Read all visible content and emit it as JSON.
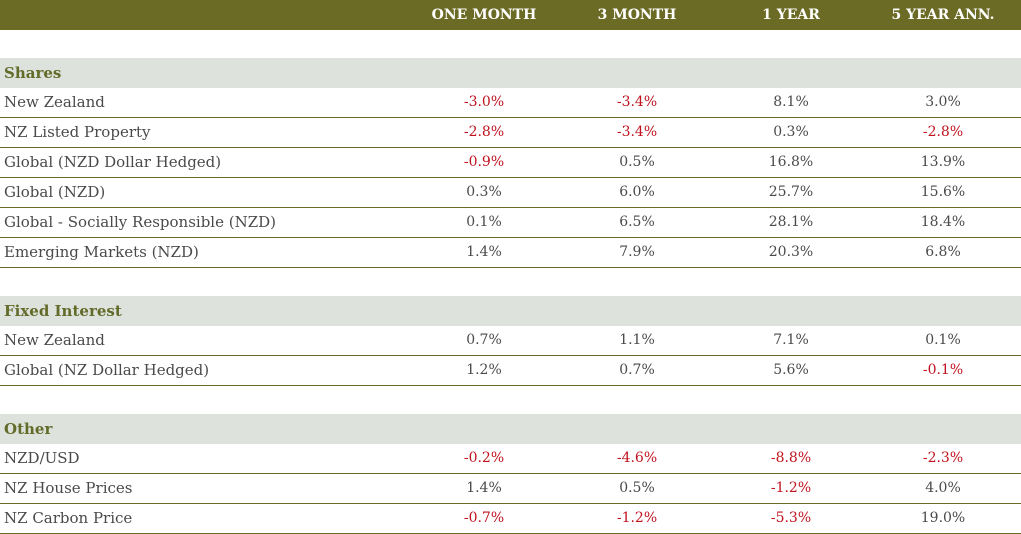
{
  "columns": [
    "ONE MONTH",
    "3 MONTH",
    "1 YEAR",
    "5 YEAR ANN."
  ],
  "colors": {
    "header_bg": "#6b6b26",
    "section_bg": "#dde3dc",
    "section_text": "#636b2a",
    "negative": "#c0121f",
    "text": "#4a4a4a"
  },
  "sections": [
    {
      "title": "Shares",
      "rows": [
        {
          "label": "New Zealand",
          "values": [
            "-3.0%",
            "-3.4%",
            "8.1%",
            "3.0%"
          ]
        },
        {
          "label": "NZ Listed Property",
          "values": [
            "-2.8%",
            "-3.4%",
            "0.3%",
            "-2.8%"
          ]
        },
        {
          "label": "Global (NZD Dollar Hedged)",
          "values": [
            "-0.9%",
            "0.5%",
            "16.8%",
            "13.9%"
          ]
        },
        {
          "label": "Global (NZD)",
          "values": [
            "0.3%",
            "6.0%",
            "25.7%",
            "15.6%"
          ]
        },
        {
          "label": "Global - Socially Responsible (NZD)",
          "values": [
            "0.1%",
            "6.5%",
            "28.1%",
            "18.4%"
          ]
        },
        {
          "label": "Emerging Markets (NZD)",
          "values": [
            "1.4%",
            "7.9%",
            "20.3%",
            "6.8%"
          ]
        }
      ]
    },
    {
      "title": "Fixed Interest",
      "rows": [
        {
          "label": "New Zealand",
          "values": [
            "0.7%",
            "1.1%",
            "7.1%",
            "0.1%"
          ]
        },
        {
          "label": "Global (NZ Dollar Hedged)",
          "values": [
            "1.2%",
            "0.7%",
            "5.6%",
            "-0.1%"
          ]
        }
      ]
    },
    {
      "title": "Other",
      "rows": [
        {
          "label": "NZD/USD",
          "values": [
            "-0.2%",
            "-4.6%",
            "-8.8%",
            "-2.3%"
          ]
        },
        {
          "label": "NZ House Prices",
          "values": [
            "1.4%",
            "0.5%",
            "-1.2%",
            "4.0%"
          ]
        },
        {
          "label": "NZ Carbon Price",
          "values": [
            "-0.7%",
            "-1.2%",
            "-5.3%",
            "19.0%"
          ]
        }
      ]
    }
  ]
}
